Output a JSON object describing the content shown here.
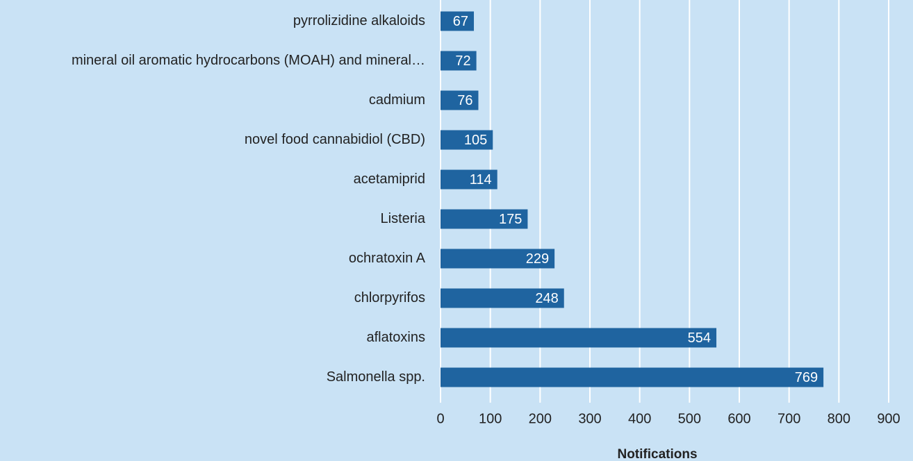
{
  "chart_data": {
    "type": "bar",
    "orientation": "horizontal",
    "categories": [
      "pyrrolizidine alkaloids",
      "mineral oil aromatic hydrocarbons (MOAH) and mineral…",
      "cadmium",
      "novel food cannabidiol (CBD)",
      "acetamiprid",
      "Listeria",
      "ochratoxin A",
      "chlorpyrifos",
      "aflatoxins",
      "Salmonella spp."
    ],
    "values": [
      67,
      72,
      76,
      105,
      114,
      175,
      229,
      248,
      554,
      769
    ],
    "color": "#1f64a0",
    "xlabel": "Notifications",
    "xlim": [
      0,
      900
    ],
    "xticks": [
      0,
      100,
      200,
      300,
      400,
      500,
      600,
      700,
      800,
      900
    ],
    "grid": true
  }
}
